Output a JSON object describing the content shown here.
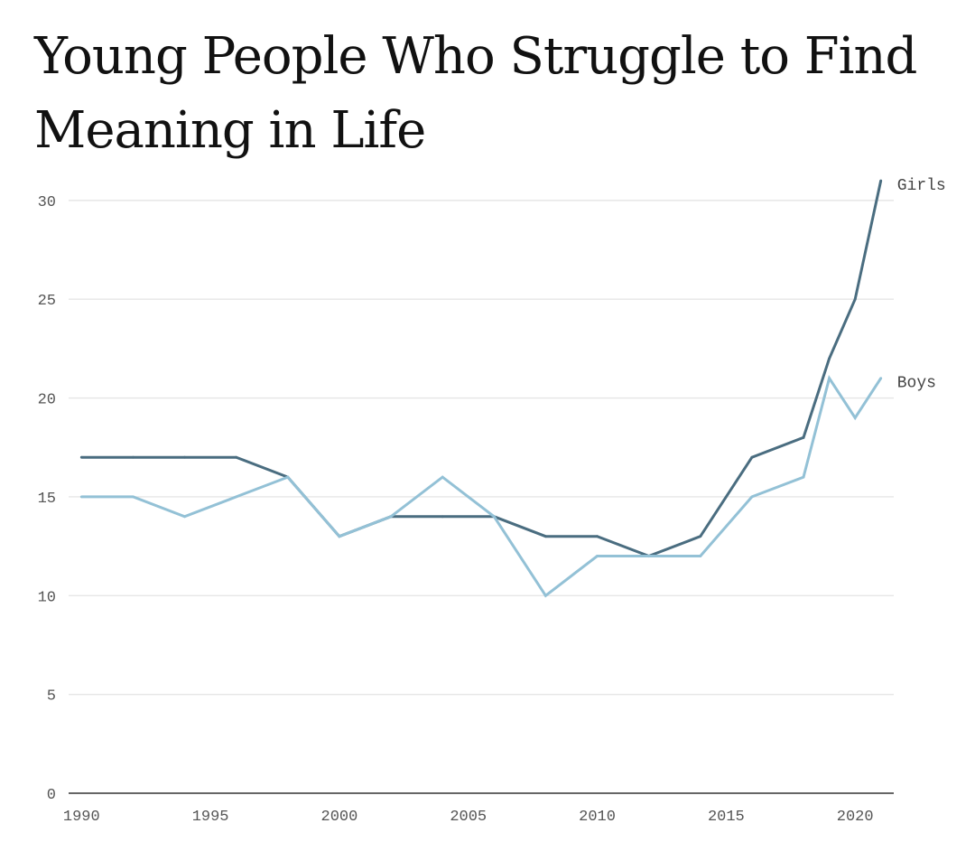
{
  "chart_data": {
    "type": "line",
    "title": "Young People Who Struggle to Find Meaning in Life",
    "xlabel": "",
    "ylabel": "",
    "xlim": [
      1989.5,
      2021.5
    ],
    "ylim": [
      0,
      31
    ],
    "x_ticks": [
      1990,
      1995,
      2000,
      2005,
      2010,
      2015,
      2020
    ],
    "y_ticks": [
      0,
      5,
      10,
      15,
      20,
      25,
      30
    ],
    "grid": true,
    "legend": "direct labels at line ends",
    "series": [
      {
        "name": "Girls",
        "color": "#4a6d80",
        "x": [
          1990,
          1992,
          1994,
          1996,
          1998,
          2000,
          2002,
          2004,
          2006,
          2008,
          2010,
          2012,
          2014,
          2016,
          2018,
          2019,
          2020,
          2021
        ],
        "values": [
          17,
          17,
          17,
          17,
          16,
          13,
          14,
          14,
          14,
          13,
          13,
          12,
          13,
          17,
          18,
          22,
          25,
          31
        ]
      },
      {
        "name": "Boys",
        "color": "#93c1d6",
        "x": [
          1990,
          1992,
          1994,
          1996,
          1998,
          2000,
          2002,
          2004,
          2006,
          2008,
          2010,
          2012,
          2014,
          2016,
          2018,
          2019,
          2020,
          2021
        ],
        "values": [
          15,
          15,
          14,
          15,
          16,
          13,
          14,
          16,
          14,
          10,
          12,
          12,
          12,
          15,
          16,
          21,
          19,
          21
        ]
      }
    ]
  }
}
